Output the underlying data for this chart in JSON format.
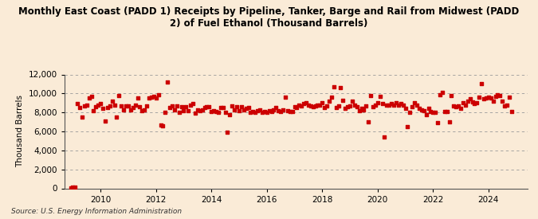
{
  "title": "Monthly East Coast (PADD 1) Receipts by Pipeline, Tanker, Barge and Rail from Midwest (PADD\n2) of Fuel Ethanol (Thousand Barrels)",
  "ylabel": "Thousand Barrels",
  "source": "Source: U.S. Energy Information Administration",
  "background_color": "#faebd7",
  "plot_bg_color": "#faebd7",
  "dot_color": "#cc0000",
  "dot_size": 8,
  "ylim": [
    0,
    12000
  ],
  "yticks": [
    0,
    2000,
    4000,
    6000,
    8000,
    10000,
    12000
  ],
  "xlim_start": 2008.7,
  "xlim_end": 2025.4,
  "xticks": [
    2010,
    2012,
    2014,
    2016,
    2018,
    2020,
    2022,
    2024
  ],
  "data": {
    "dates": [
      2008.917,
      2009.0,
      2009.083,
      2009.167,
      2009.25,
      2009.333,
      2009.417,
      2009.5,
      2009.583,
      2009.667,
      2009.75,
      2009.833,
      2009.917,
      2010.0,
      2010.083,
      2010.167,
      2010.25,
      2010.333,
      2010.417,
      2010.5,
      2010.583,
      2010.667,
      2010.75,
      2010.833,
      2010.917,
      2011.0,
      2011.083,
      2011.167,
      2011.25,
      2011.333,
      2011.417,
      2011.5,
      2011.583,
      2011.667,
      2011.75,
      2011.833,
      2011.917,
      2012.0,
      2012.083,
      2012.167,
      2012.25,
      2012.333,
      2012.417,
      2012.5,
      2012.583,
      2012.667,
      2012.75,
      2012.833,
      2012.917,
      2013.0,
      2013.083,
      2013.167,
      2013.25,
      2013.333,
      2013.417,
      2013.5,
      2013.583,
      2013.667,
      2013.75,
      2013.833,
      2013.917,
      2014.0,
      2014.083,
      2014.167,
      2014.25,
      2014.333,
      2014.417,
      2014.5,
      2014.583,
      2014.667,
      2014.75,
      2014.833,
      2014.917,
      2015.0,
      2015.083,
      2015.167,
      2015.25,
      2015.333,
      2015.417,
      2015.5,
      2015.583,
      2015.667,
      2015.75,
      2015.833,
      2015.917,
      2016.0,
      2016.083,
      2016.167,
      2016.25,
      2016.333,
      2016.417,
      2016.5,
      2016.583,
      2016.667,
      2016.75,
      2016.833,
      2016.917,
      2017.0,
      2017.083,
      2017.167,
      2017.25,
      2017.333,
      2017.417,
      2017.5,
      2017.583,
      2017.667,
      2017.75,
      2017.833,
      2017.917,
      2018.0,
      2018.083,
      2018.167,
      2018.25,
      2018.333,
      2018.417,
      2018.5,
      2018.583,
      2018.667,
      2018.75,
      2018.833,
      2018.917,
      2019.0,
      2019.083,
      2019.167,
      2019.25,
      2019.333,
      2019.417,
      2019.5,
      2019.583,
      2019.667,
      2019.75,
      2019.833,
      2019.917,
      2020.0,
      2020.083,
      2020.167,
      2020.25,
      2020.333,
      2020.417,
      2020.5,
      2020.583,
      2020.667,
      2020.75,
      2020.833,
      2020.917,
      2021.0,
      2021.083,
      2021.167,
      2021.25,
      2021.333,
      2021.417,
      2021.5,
      2021.583,
      2021.667,
      2021.75,
      2021.833,
      2021.917,
      2022.0,
      2022.083,
      2022.167,
      2022.25,
      2022.333,
      2022.417,
      2022.5,
      2022.583,
      2022.667,
      2022.75,
      2022.833,
      2022.917,
      2023.0,
      2023.083,
      2023.167,
      2023.25,
      2023.333,
      2023.417,
      2023.5,
      2023.583,
      2023.667,
      2023.75,
      2023.833,
      2023.917,
      2024.0,
      2024.083,
      2024.167,
      2024.25,
      2024.333,
      2024.417,
      2024.5,
      2024.583,
      2024.667,
      2024.75,
      2024.833
    ],
    "values": [
      50,
      100,
      150,
      8900,
      8500,
      7500,
      8700,
      8800,
      9500,
      9700,
      8200,
      8600,
      8800,
      8900,
      8400,
      7100,
      8500,
      8700,
      9200,
      8800,
      7500,
      9800,
      8700,
      8300,
      8700,
      8700,
      8300,
      8500,
      8800,
      9500,
      8600,
      8200,
      8300,
      8700,
      9500,
      9600,
      9700,
      9500,
      9900,
      6700,
      6600,
      8000,
      11200,
      8500,
      8700,
      8300,
      8700,
      8000,
      8600,
      8200,
      8600,
      8200,
      8800,
      8900,
      7900,
      8300,
      8200,
      8300,
      8500,
      8600,
      8600,
      8100,
      8200,
      8100,
      8000,
      8500,
      8500,
      8000,
      5900,
      7800,
      8700,
      8300,
      8600,
      8200,
      8600,
      8300,
      8400,
      8500,
      8000,
      8100,
      8000,
      8200,
      8300,
      8000,
      8100,
      8000,
      8200,
      8100,
      8300,
      8500,
      8200,
      8100,
      8300,
      9600,
      8200,
      8100,
      8100,
      8600,
      8500,
      8800,
      8700,
      8900,
      9000,
      8800,
      8700,
      8600,
      8700,
      8800,
      8800,
      9000,
      8500,
      8700,
      9200,
      9600,
      10700,
      8500,
      8700,
      10600,
      9300,
      8400,
      8600,
      8700,
      9200,
      8800,
      8600,
      8200,
      8400,
      8300,
      8700,
      7000,
      9800,
      8600,
      8800,
      9000,
      9700,
      8900,
      5400,
      8800,
      8800,
      8900,
      8800,
      9000,
      8800,
      8900,
      8800,
      8400,
      6500,
      8000,
      8600,
      9000,
      8800,
      8400,
      8300,
      8200,
      7800,
      8400,
      8100,
      8000,
      8000,
      6900,
      9900,
      10100,
      8100,
      8100,
      7000,
      9800,
      8700,
      8600,
      8700,
      8400,
      9000,
      8800,
      9200,
      9400,
      9100,
      8900,
      9000,
      9600,
      11000,
      9400,
      9500,
      9600,
      9500,
      9200,
      9700,
      9900,
      9800,
      9200,
      8700,
      8800,
      9600,
      8100
    ]
  }
}
